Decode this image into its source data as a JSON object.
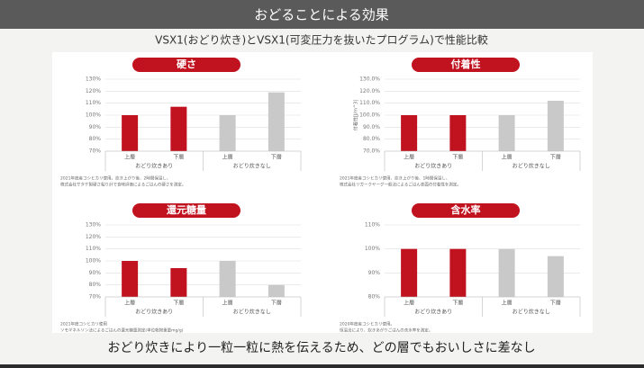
{
  "header": {
    "title": "おどることによる効果",
    "subtitle": "VSX1(おどり炊き)とVSX1(可変圧力を抜いたプログラム)で性能比較",
    "caption": "おどり炊きにより一粒一粒に熱を伝えるため、どの層でもおいしさに差なし"
  },
  "chart_data": [
    {
      "type": "bar",
      "title": "硬さ",
      "categories": [
        "上層",
        "下層",
        "上層",
        "下層"
      ],
      "groups": [
        "おどり炊きあり",
        "おどり炊きなし"
      ],
      "values": [
        100,
        107,
        100,
        119
      ],
      "colors": [
        "#c0121f",
        "#c0121f",
        "#c9c9c9",
        "#c9c9c9"
      ],
      "ylim": [
        70,
        130
      ],
      "yticks": [
        {
          "value": 70,
          "label": "70%"
        },
        {
          "value": 80,
          "label": "80%"
        },
        {
          "value": 90,
          "label": "90%"
        },
        {
          "value": 100,
          "label": "100%"
        },
        {
          "value": 110,
          "label": "110%"
        },
        {
          "value": 120,
          "label": "120%"
        },
        {
          "value": 130,
          "label": "130%"
        }
      ],
      "grid": true,
      "notes": [
        "2021年度産コシヒカリ使用。炊き上がり後、2時間保温し、",
        "株式会社サタケ製硬さ粘り計で食味評価によるごはんの硬さを測定。"
      ]
    },
    {
      "type": "bar",
      "title": "付着性",
      "ylabel": "付着性[J/m^3]",
      "categories": [
        "上層",
        "下層",
        "上層",
        "下層"
      ],
      "groups": [
        "おどり炊きあり",
        "おどり炊きなし"
      ],
      "values": [
        100,
        100,
        100,
        112
      ],
      "colors": [
        "#c0121f",
        "#c0121f",
        "#c9c9c9",
        "#c9c9c9"
      ],
      "ylim": [
        70,
        130
      ],
      "yticks": [
        {
          "value": 70,
          "label": "70.0%"
        },
        {
          "value": 80,
          "label": "80.0%"
        },
        {
          "value": 90,
          "label": "90.0%"
        },
        {
          "value": 100,
          "label": "100.0%"
        },
        {
          "value": 110,
          "label": "110.0%"
        },
        {
          "value": 120,
          "label": "120.0%"
        },
        {
          "value": 130,
          "label": "130.0%"
        }
      ],
      "grid": true,
      "notes": [
        "2021年度産コシヒカリ使用、炊き上がり後、1時間保温し、",
        "株式会社リガークヤーグ一般法によるごはん表面の付着性を測定。"
      ]
    },
    {
      "type": "bar",
      "title": "還元糖量",
      "categories": [
        "上層",
        "下層",
        "上層",
        "下層"
      ],
      "groups": [
        "おどり炊きあり",
        "おどり炊きなし"
      ],
      "values": [
        100,
        94,
        100,
        80
      ],
      "colors": [
        "#c0121f",
        "#c0121f",
        "#c9c9c9",
        "#c9c9c9"
      ],
      "ylim": [
        70,
        130
      ],
      "yticks": [
        {
          "value": 70,
          "label": "70%"
        },
        {
          "value": 80,
          "label": "80%"
        },
        {
          "value": 90,
          "label": "90%"
        },
        {
          "value": 100,
          "label": "100%"
        },
        {
          "value": 110,
          "label": "110%"
        },
        {
          "value": 120,
          "label": "120%"
        },
        {
          "value": 130,
          "label": "130%"
        }
      ],
      "grid": true,
      "notes": [
        "2021年度コシヒカリ使用",
        "ソモギネルソン法によるごはんの還元糖量測定(単位乾物重量mg/g)"
      ]
    },
    {
      "type": "bar",
      "title": "含水率",
      "categories": [
        "上層",
        "下層",
        "上層",
        "下層"
      ],
      "groups": [
        "おどり炊きあり",
        "おどり炊きなし"
      ],
      "values": [
        100,
        100,
        100,
        97
      ],
      "colors": [
        "#c0121f",
        "#c0121f",
        "#c9c9c9",
        "#c9c9c9"
      ],
      "ylim": [
        80,
        110
      ],
      "yticks": [
        {
          "value": 80,
          "label": "80%"
        },
        {
          "value": 90,
          "label": "90%"
        },
        {
          "value": 100,
          "label": "100%"
        },
        {
          "value": 110,
          "label": "110%"
        }
      ],
      "grid": true,
      "notes": [
        "2020年度産コシヒカリ使用。",
        "恒温法により、炊きあがりごはんの含水率を測定。"
      ]
    }
  ]
}
